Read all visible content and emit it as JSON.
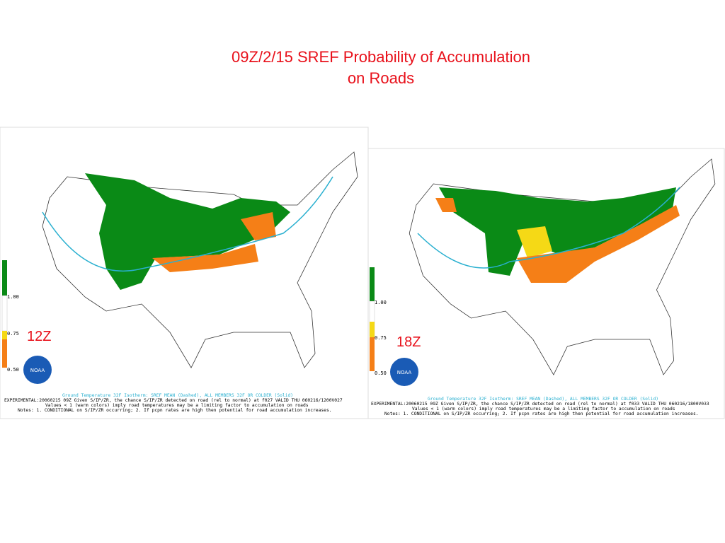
{
  "title_lines": [
    "09Z/2/15 SREF Probability of Accumulation",
    "on Roads"
  ],
  "panels": [
    {
      "label": "12Z",
      "logo": "NOAA",
      "legend_ticks": [
        "1.00",
        "0.75",
        "0.50"
      ],
      "caption_lines": [
        "Ground Temperature 32F Isotherm: SREF MEAN (Dashed), ALL MEMBERS 32F OR COLDER (Solid)",
        "EXPERIMENTAL:20060215 09Z Given S/IP/ZR, the chance S/IP/ZR detected on road (rel to normal) at f027 VALID THU 060216/1200V027",
        "Values < 1 (warm colors) imply road temperatures may be a limiting factor to accumulation on roads",
        "Notes: 1. CONDITIONAL on S/IP/ZR occurring; 2. If pcpn rates are high then potential for road accumulation increases."
      ]
    },
    {
      "label": "18Z",
      "logo": "NOAA",
      "legend_ticks": [
        "1.00",
        "0.75",
        "0.50"
      ],
      "caption_lines": [
        "Ground Temperature 32F Isotherm: SREF MEAN (Dashed), ALL MEMBERS 32F OR COLDER (Solid)",
        "EXPERIMENTAL:20060215 09Z Given S/IP/ZR, the chance S/IP/ZR detected on road (rel to normal) at f033 VALID THU 060216/1800V033",
        "Values < 1 (warm colors) imply road temperatures may be a limiting factor to accumulation on roads",
        "Notes: 1. CONDITIONAL on S/IP/ZR occurring; 2. If pcpn rates are high then potential for road accumulation increases."
      ]
    }
  ]
}
